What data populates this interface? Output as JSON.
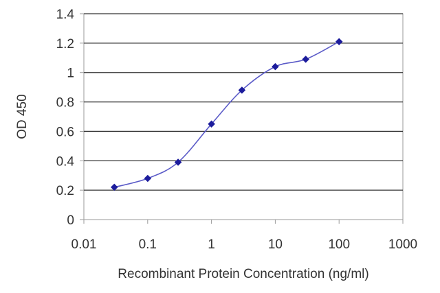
{
  "chart_data": {
    "type": "line",
    "title": "",
    "xlabel": "Recombinant Protein Concentration (ng/ml)",
    "ylabel": "OD 450",
    "x_scale": "log",
    "xlim": [
      0.01,
      1000
    ],
    "ylim": [
      0,
      1.4
    ],
    "x_ticks": [
      "0.01",
      "0.1",
      "1",
      "10",
      "100",
      "1000"
    ],
    "y_ticks": [
      "0",
      "0.2",
      "0.4",
      "0.6",
      "0.8",
      "1",
      "1.2",
      "1.4"
    ],
    "grid": "horizontal",
    "legend": "none",
    "series": [
      {
        "x": [
          0.03,
          0.1,
          0.3,
          1,
          3,
          10,
          30,
          100
        ],
        "y": [
          0.22,
          0.28,
          0.39,
          0.65,
          0.88,
          1.04,
          1.09,
          1.21
        ]
      }
    ],
    "colors": {
      "line": "#5b5bc8",
      "marker": "#1c1c9c",
      "grid": "#333333",
      "plot_border": "#9a9a9a",
      "text": "#333333"
    }
  }
}
